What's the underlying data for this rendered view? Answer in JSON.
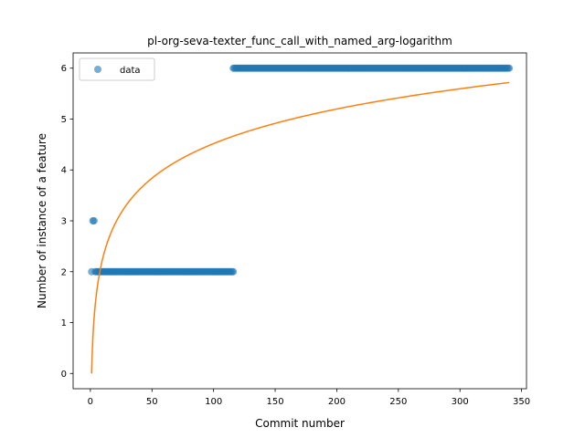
{
  "chart_data": {
    "type": "scatter",
    "title": "pl-org-seva-texter_func_call_with_named_arg-logarithm",
    "xlabel": "Commit number",
    "ylabel": "Number of instance of a feature",
    "xlim": [
      -14,
      354
    ],
    "ylim": [
      -0.3,
      6.3
    ],
    "xticks": [
      0,
      50,
      100,
      150,
      200,
      250,
      300,
      350
    ],
    "yticks": [
      0,
      1,
      2,
      3,
      4,
      5,
      6
    ],
    "grid": false,
    "legend": {
      "position": "top-left",
      "entries": [
        "data"
      ]
    },
    "series": [
      {
        "name": "data",
        "kind": "scatter",
        "color": "#1f77b4",
        "alpha": 0.6,
        "points": [
          [
            1,
            2
          ],
          [
            2,
            3
          ],
          [
            3,
            3
          ]
        ],
        "runs": [
          {
            "x_start": 4,
            "x_end": 116,
            "y": 2
          },
          {
            "x_start": 116,
            "x_end": 340,
            "y": 6
          }
        ]
      },
      {
        "name": "",
        "kind": "line",
        "color": "#ff7f0e",
        "model": "logarithmic",
        "x_range": [
          1,
          340
        ],
        "formula": "y = 0.981 * ln(x)"
      }
    ]
  }
}
